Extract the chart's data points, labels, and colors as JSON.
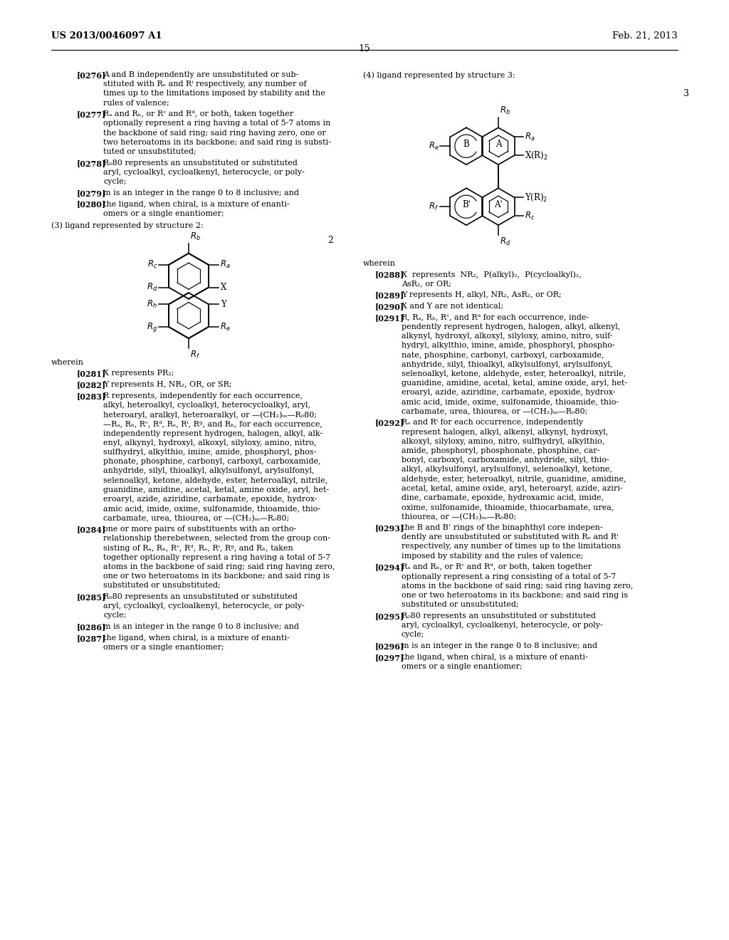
{
  "bg_color": "#ffffff",
  "header_left": "US 2013/0046097 A1",
  "header_right": "Feb. 21, 2013",
  "page_number": "15",
  "left_paras": [
    {
      "tag": "[0276]",
      "lines": [
        "A and B independently are unsubstituted or sub-",
        "stituted with Rₑ and Rⁱ respectively, any number of",
        "times up to the limitations imposed by stability and the",
        "rules of valence;"
      ]
    },
    {
      "tag": "[0277]",
      "lines": [
        "Rₐ and Rₕ, or Rᶜ and Rᵈ, or both, taken together",
        "optionally represent a ring having a total of 5-7 atoms in",
        "the backbone of said ring; said ring having zero, one or",
        "two heteroatoms in its backbone; and said ring is substi-",
        "tuted or unsubstituted;"
      ]
    },
    {
      "tag": "[0278]",
      "lines": [
        "R₀80 represents an unsubstituted or substituted",
        "aryl, cycloalkyl, cycloalkenyl, heterocycle, or poly-",
        "cycle;"
      ]
    },
    {
      "tag": "[0279]",
      "lines": [
        "m is an integer in the range 0 to 8 inclusive; and"
      ]
    },
    {
      "tag": "[0280]",
      "lines": [
        "the ligand, when chiral, is a mixture of enanti-",
        "omers or a single enantiomer;"
      ]
    }
  ],
  "struct2_intro": "(3) ligand represented by structure 2:",
  "struct2_num": "2",
  "wherein_left": "wherein",
  "wherein_left_paras": [
    {
      "tag": "[0281]",
      "lines": [
        "X represents PR₂;"
      ]
    },
    {
      "tag": "[0282]",
      "lines": [
        "Y represents H, NR₂, OR, or SR;"
      ]
    },
    {
      "tag": "[0283]",
      "lines": [
        "R represents, independently for each occurrence,",
        "alkyl, heteroalkyl, cycloalkyl, heterocycloalkyl, aryl,",
        "heteroaryl, aralkyl, heteroaralkyl, or —(CH₂)ₘ—R₀80;",
        "—Rₐ, Rₕ, Rᶜ, Rᵈ, Rₑ, Rⁱ, Rᵍ, and Rₕ, for each occurrence,",
        "independently represent hydrogen, halogen, alkyl, alk-",
        "enyl, alkynyl, hydroxyl, alkoxyl, silyloxy, amino, nitro,",
        "sulfhydryl, alkylthio, imine, amide, phosphoryl, phos-",
        "phonate, phosphine, carbonyl, carboxyl, carboxamide,",
        "anhydride, silyl, thioalkyl, alkylsulfonyl, arylsulfonyl,",
        "selenoalkyl, ketone, aldehyde, ester, heteroalkyl, nitrile,",
        "guanidine, amidine, acetal, ketal, amine oxide, aryl, het-",
        "eroaryl, azide, aziridine, carbamate, epoxide, hydrox-",
        "amic acid, imide, oxime, sulfonamide, thioamide, thio-",
        "carbamate, urea, thiourea, or —(CH₂)ₘ—R₀80;"
      ]
    },
    {
      "tag": "[0284]",
      "lines": [
        "one or more pairs of substituents with an ortho-",
        "relationship therebetween, selected from the group con-",
        "sisting of Rₐ, Rₕ, Rᶜ, Rᵈ, Rₑ, Rⁱ, Rᵍ, and Rₕ, taken",
        "together optionally represent a ring having a total of 5-7",
        "atoms in the backbone of said ring; said ring having zero,",
        "one or two heteroatoms in its backbone; and said ring is",
        "substituted or unsubstituted;"
      ]
    },
    {
      "tag": "[0285]",
      "lines": [
        "R₀80 represents an unsubstituted or substituted",
        "aryl, cycloalkyl, cycloalkenyl, heterocycle, or poly-",
        "cycle;"
      ]
    },
    {
      "tag": "[0286]",
      "lines": [
        "m is an integer in the range 0 to 8 inclusive; and"
      ]
    },
    {
      "tag": "[0287]",
      "lines": [
        "the ligand, when chiral, is a mixture of enanti-",
        "omers or a single enantiomer;"
      ]
    }
  ],
  "struct3_intro": "(4) ligand represented by structure 3:",
  "struct3_num": "3",
  "wherein_right": "wherein",
  "wherein_right_paras": [
    {
      "tag": "[0288]",
      "lines": [
        "X  represents  NR₂,  P(alkyl)₂,  P(cycloalkyl)₂,",
        "AsR₂, or OR;"
      ]
    },
    {
      "tag": "[0289]",
      "lines": [
        "Y represents H, alkyl, NR₂, AsR₂, or OR;"
      ]
    },
    {
      "tag": "[0290]",
      "lines": [
        "X and Y are not identical;"
      ]
    },
    {
      "tag": "[0291]",
      "lines": [
        "R, Rₐ, Rₕ, Rᶜ, and Rᵈ for each occurrence, inde-",
        "pendently represent hydrogen, halogen, alkyl, alkenyl,",
        "alkynyl, hydroxyl, alkoxyl, silyloxy, amino, nitro, sulf-",
        "hydryl, alkylthio, imine, amide, phosphoryl, phospho-",
        "nate, phosphine, carbonyl, carboxyl, carboxamide,",
        "anhydride, silyl, thioalkyl, alkylsulfonyl, arylsulfonyl,",
        "selenoalkyl, ketone, aldehyde, ester, heteroalkyl, nitrile,",
        "guanidine, amidine, acetal, ketal, amine oxide, aryl, het-",
        "eroaryl, azide, aziridine, carbamate, epoxide, hydrox-",
        "amic acid, imide, oxime, sulfonamide, thioamide, thio-",
        "carbamate, urea, thiourea, or —(CH₂)ₘ—R₀80;"
      ]
    },
    {
      "tag": "[0292]",
      "lines": [
        "Rₑ and Rⁱ for each occurrence, independently",
        "represent halogen, alkyl, alkenyl, alkynyl, hydroxyl,",
        "alkoxyl, silyloxy, amino, nitro, sulfhydryl, alkylthio,",
        "amide, phosphoryl, phosphonate, phosphine, car-",
        "bonyl, carboxyl, carboxamide, anhydride, silyl, thio-",
        "alkyl, alkylsulfonyl, arylsulfonyl, selenoalkyl, ketone,",
        "aldehyde, ester, heteroalkyl, nitrile, guanidine, amidine,",
        "acetal, ketal, amine oxide, aryl, heteroaryl, azide, aziri-",
        "dine, carbamate, epoxide, hydroxamic acid, imide,",
        "oxime, sulfonamide, thioamide, thiocarbamate, urea,",
        "thiourea, or —(CH₂)ₘ—R₀80;"
      ]
    },
    {
      "tag": "[0293]",
      "lines": [
        "the B and B’ rings of the binaphthyl core indepen-",
        "dently are unsubstituted or substituted with Rₑ and Rⁱ",
        "respectively, any number of times up to the limitations",
        "imposed by stability and the rules of valence;"
      ]
    },
    {
      "tag": "[0294]",
      "lines": [
        "Rₐ and Rₕ, or Rᶜ and Rᵈ, or both, taken together",
        "optionally represent a ring consisting of a total of 5-7",
        "atoms in the backbone of said ring; said ring having zero,",
        "one or two heteroatoms in its backbone; and said ring is",
        "substituted or unsubstituted;"
      ]
    },
    {
      "tag": "[0295]",
      "lines": [
        "R₀80 represents an unsubstituted or substituted",
        "aryl, cycloalkyl, cycloalkenyl, heterocycle, or poly-",
        "cycle;"
      ]
    },
    {
      "tag": "[0296]",
      "lines": [
        "m is an integer in the range 0 to 8 inclusive; and"
      ]
    },
    {
      "tag": "[0297]",
      "lines": [
        "the ligand, when chiral, is a mixture of enanti-",
        "omers or a single enantiomer;"
      ]
    }
  ]
}
